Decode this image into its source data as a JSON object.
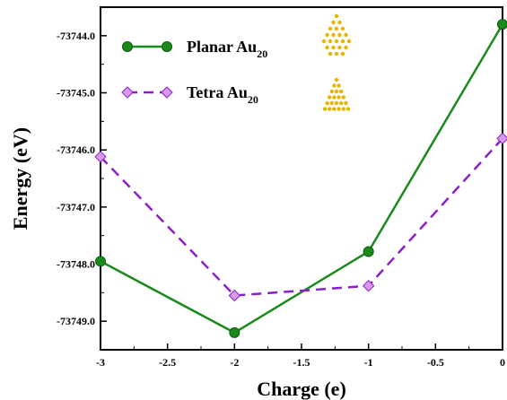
{
  "chart_data": {
    "type": "line",
    "xlabel": "Charge (e)",
    "ylabel": "Energy (eV)",
    "x": [
      -3,
      -2,
      -1,
      0
    ],
    "xlim": [
      -3,
      0
    ],
    "ylim": [
      -73749.5,
      -73743.5
    ],
    "xticks": [
      -3,
      -2.5,
      -2,
      -1.5,
      -1,
      -0.5,
      0
    ],
    "xtick_labels": [
      "-3",
      "-2.5",
      "-2",
      "-1.5",
      "-1",
      "-0.5",
      "0"
    ],
    "yticks": [
      -73749.0,
      -73748.0,
      -73747.0,
      -73746.0,
      -73745.0,
      -73744.0
    ],
    "ytick_labels": [
      "-73749.0",
      "-73748.0",
      "-73747.0",
      "-73746.0",
      "-73745.0",
      "-73744.0"
    ],
    "grid": false,
    "legend_position": "top-left",
    "series": [
      {
        "name": "Planar Au",
        "name_sub": "20",
        "values": [
          -73747.95,
          -73749.2,
          -73747.78,
          -73743.8
        ],
        "color": "#1a8a1a",
        "marker": "circle",
        "dash": "solid",
        "icon": "planar-au20-cluster-icon"
      },
      {
        "name": "Tetra Au",
        "name_sub": "20",
        "values": [
          -73746.12,
          -73748.55,
          -73748.38,
          -73745.8
        ],
        "color": "#8b1fc9",
        "marker_fill": "#d898ec",
        "marker": "diamond",
        "dash": "dashed",
        "icon": "tetra-au20-cluster-icon"
      }
    ]
  }
}
